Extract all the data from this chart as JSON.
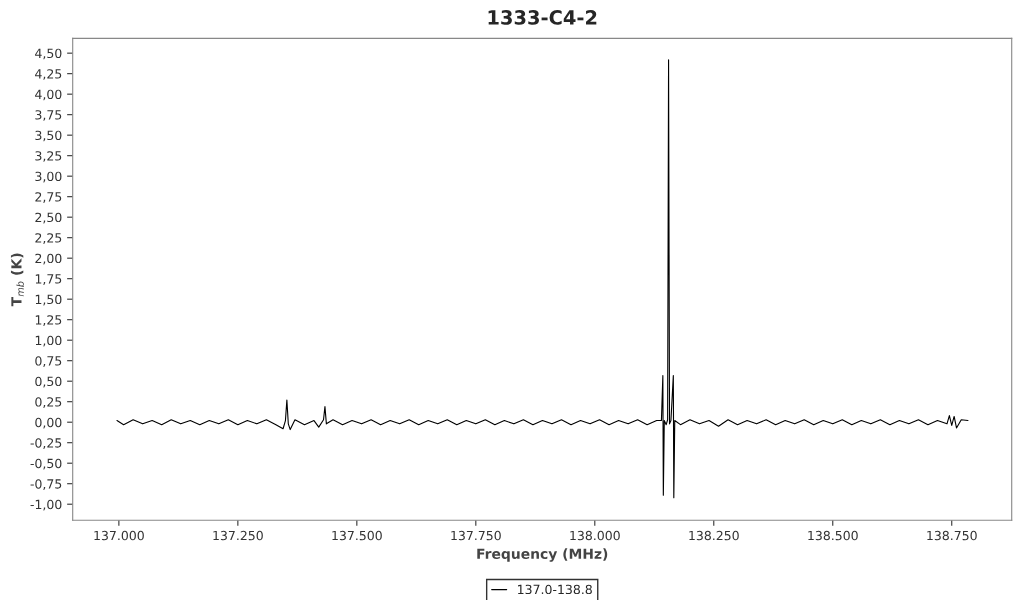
{
  "chart_data": {
    "type": "line",
    "title": "1333-C4-2",
    "xlabel": "Frequency (MHz)",
    "ylabel": "T$_{mb}$ (K)",
    "xlim": [
      136903,
      138876
    ],
    "ylim": [
      -1.195,
      4.68
    ],
    "xticks": [
      {
        "value": 137000,
        "label": "137.000"
      },
      {
        "value": 137250,
        "label": "137.250"
      },
      {
        "value": 137500,
        "label": "137.500"
      },
      {
        "value": 137750,
        "label": "137.750"
      },
      {
        "value": 138000,
        "label": "138.000"
      },
      {
        "value": 138250,
        "label": "138.250"
      },
      {
        "value": 138500,
        "label": "138.500"
      },
      {
        "value": 138750,
        "label": "138.750"
      }
    ],
    "yticks": [
      {
        "value": -1.0,
        "label": "-1,00"
      },
      {
        "value": -0.75,
        "label": "-0,75"
      },
      {
        "value": -0.5,
        "label": "-0,50"
      },
      {
        "value": -0.25,
        "label": "-0,25"
      },
      {
        "value": 0.0,
        "label": "0,00"
      },
      {
        "value": 0.25,
        "label": "0,25"
      },
      {
        "value": 0.5,
        "label": "0,50"
      },
      {
        "value": 0.75,
        "label": "0,75"
      },
      {
        "value": 1.0,
        "label": "1,00"
      },
      {
        "value": 1.25,
        "label": "1,25"
      },
      {
        "value": 1.5,
        "label": "1,50"
      },
      {
        "value": 1.75,
        "label": "1,75"
      },
      {
        "value": 2.0,
        "label": "2,00"
      },
      {
        "value": 2.25,
        "label": "2,25"
      },
      {
        "value": 2.5,
        "label": "2,50"
      },
      {
        "value": 2.75,
        "label": "2,75"
      },
      {
        "value": 3.0,
        "label": "3,00"
      },
      {
        "value": 3.25,
        "label": "3,25"
      },
      {
        "value": 3.5,
        "label": "3,50"
      },
      {
        "value": 3.75,
        "label": "3,75"
      },
      {
        "value": 4.0,
        "label": "4,00"
      },
      {
        "value": 4.25,
        "label": "4,25"
      },
      {
        "value": 4.5,
        "label": "4,50"
      }
    ],
    "grid": false,
    "legend": "bottom",
    "marker": "none",
    "line_style": "solid",
    "series": [
      {
        "name": "137.0-138.8",
        "color": "#000000",
        "x": [
          136996,
          137010,
          137030,
          137050,
          137070,
          137090,
          137110,
          137130,
          137150,
          137170,
          137190,
          137210,
          137230,
          137250,
          137270,
          137290,
          137310,
          137330,
          137345,
          137350,
          137353,
          137356,
          137360,
          137370,
          137390,
          137410,
          137420,
          137430,
          137433,
          137436,
          137450,
          137470,
          137490,
          137510,
          137530,
          137550,
          137570,
          137590,
          137610,
          137630,
          137650,
          137670,
          137690,
          137710,
          137730,
          137750,
          137770,
          137790,
          137810,
          137830,
          137850,
          137870,
          137890,
          137910,
          137930,
          137950,
          137970,
          137990,
          138010,
          138030,
          138050,
          138070,
          138090,
          138110,
          138130,
          138140,
          138143,
          138144,
          138146,
          138150,
          138153,
          138155,
          138157,
          138160,
          138165,
          138166,
          138168,
          138180,
          138200,
          138220,
          138240,
          138260,
          138280,
          138300,
          138320,
          138340,
          138360,
          138380,
          138400,
          138420,
          138440,
          138460,
          138480,
          138500,
          138520,
          138540,
          138560,
          138580,
          138600,
          138620,
          138640,
          138660,
          138680,
          138700,
          138720,
          138740,
          138745,
          138750,
          138755,
          138760,
          138770,
          138784
        ],
        "values": [
          0.02,
          -0.03,
          0.03,
          -0.02,
          0.02,
          -0.03,
          0.03,
          -0.02,
          0.02,
          -0.03,
          0.02,
          -0.02,
          0.03,
          -0.03,
          0.02,
          -0.02,
          0.03,
          -0.03,
          -0.08,
          0.02,
          0.27,
          -0.02,
          -0.09,
          0.03,
          -0.03,
          0.02,
          -0.06,
          0.03,
          0.19,
          -0.02,
          0.03,
          -0.03,
          0.02,
          -0.02,
          0.03,
          -0.03,
          0.02,
          -0.02,
          0.03,
          -0.03,
          0.02,
          -0.02,
          0.03,
          -0.03,
          0.02,
          -0.02,
          0.03,
          -0.03,
          0.02,
          -0.02,
          0.03,
          -0.03,
          0.02,
          -0.02,
          0.03,
          -0.03,
          0.02,
          -0.02,
          0.03,
          -0.03,
          0.02,
          -0.02,
          0.03,
          -0.03,
          0.02,
          0.02,
          0.57,
          -0.89,
          0.02,
          -0.03,
          0.03,
          4.42,
          -0.02,
          0.02,
          0.57,
          -0.92,
          0.02,
          -0.03,
          0.03,
          -0.02,
          0.02,
          -0.05,
          0.03,
          -0.03,
          0.02,
          -0.02,
          0.03,
          -0.03,
          0.02,
          -0.02,
          0.03,
          -0.03,
          0.02,
          -0.02,
          0.03,
          -0.03,
          0.02,
          -0.02,
          0.03,
          -0.03,
          0.02,
          -0.02,
          0.03,
          -0.03,
          0.02,
          -0.02,
          0.08,
          -0.04,
          0.07,
          -0.07,
          0.03,
          0.02
        ]
      }
    ]
  }
}
